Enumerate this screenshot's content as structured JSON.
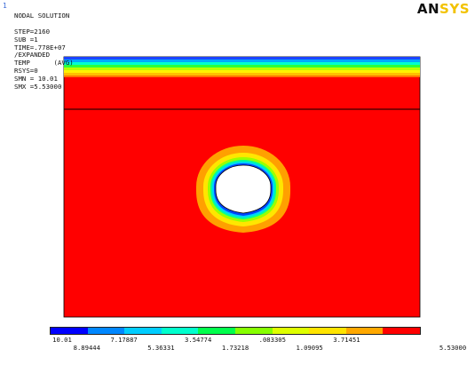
{
  "corner_number": "1",
  "info_lines": [
    "NODAL SOLUTION",
    "",
    "STEP=2160",
    "SUB =1",
    "TIME=.778E+07",
    "/EXPANDED",
    "TEMP      (AVG)",
    "RSYS=0",
    "SMN = 10.01",
    "SMX =5.53000"
  ],
  "logo": {
    "text_main": "AN",
    "text_accent": "SYS"
  },
  "colors": {
    "field_red": "#ff0000",
    "bands": [
      "#0000ff",
      "#0087ff",
      "#00cdff",
      "#00ffcd",
      "#00ff4c",
      "#86ff00",
      "#dfff00",
      "#ffe400",
      "#ffa800",
      "#ff0000"
    ]
  },
  "legend": {
    "top_labels": [
      "10.01",
      "7.17887",
      "3.54774",
      ".083305",
      "3.71451"
    ],
    "bottom_labels": [
      "8.89444",
      "5.36331",
      "1.73218",
      "1.09095",
      "5.53000"
    ]
  }
}
